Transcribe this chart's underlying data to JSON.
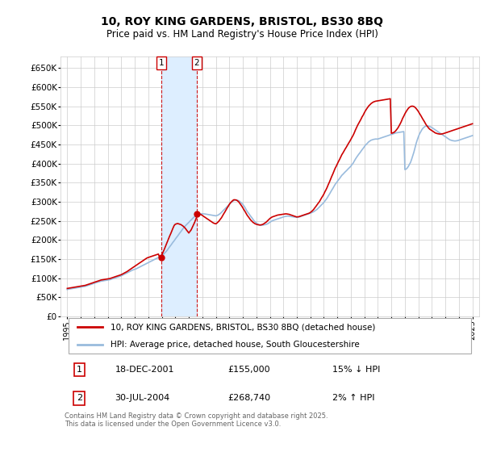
{
  "title": "10, ROY KING GARDENS, BRISTOL, BS30 8BQ",
  "subtitle": "Price paid vs. HM Land Registry's House Price Index (HPI)",
  "ylim": [
    0,
    680000
  ],
  "yticks": [
    0,
    50000,
    100000,
    150000,
    200000,
    250000,
    300000,
    350000,
    400000,
    450000,
    500000,
    550000,
    600000,
    650000
  ],
  "ytick_labels": [
    "£0",
    "£50K",
    "£100K",
    "£150K",
    "£200K",
    "£250K",
    "£300K",
    "£350K",
    "£400K",
    "£450K",
    "£500K",
    "£550K",
    "£600K",
    "£650K"
  ],
  "sale1_x": 2001.96,
  "sale1_y": 155000,
  "sale2_x": 2004.58,
  "sale2_y": 268740,
  "sale_labels": [
    "1",
    "2"
  ],
  "legend_house_label": "10, ROY KING GARDENS, BRISTOL, BS30 8BQ (detached house)",
  "legend_hpi_label": "HPI: Average price, detached house, South Gloucestershire",
  "table_rows": [
    [
      "1",
      "18-DEC-2001",
      "£155,000",
      "15% ↓ HPI"
    ],
    [
      "2",
      "30-JUL-2004",
      "£268,740",
      "2% ↑ HPI"
    ]
  ],
  "footer_text": "Contains HM Land Registry data © Crown copyright and database right 2025.\nThis data is licensed under the Open Government Licence v3.0.",
  "house_color": "#cc0000",
  "hpi_color": "#99bbdd",
  "sale_marker_color": "#cc0000",
  "shade_color": "#ddeeff",
  "grid_color": "#cccccc",
  "background_color": "#ffffff",
  "xlim_start": 1994.5,
  "xlim_end": 2025.5,
  "xticks": [
    1995,
    1996,
    1997,
    1998,
    1999,
    2000,
    2001,
    2002,
    2003,
    2004,
    2005,
    2006,
    2007,
    2008,
    2009,
    2010,
    2011,
    2012,
    2013,
    2014,
    2015,
    2016,
    2017,
    2018,
    2019,
    2020,
    2021,
    2022,
    2023,
    2024,
    2025
  ],
  "hpi_x": [
    1995.0,
    1995.08,
    1995.17,
    1995.25,
    1995.33,
    1995.42,
    1995.5,
    1995.58,
    1995.67,
    1995.75,
    1995.83,
    1995.92,
    1996.0,
    1996.08,
    1996.17,
    1996.25,
    1996.33,
    1996.42,
    1996.5,
    1996.58,
    1996.67,
    1996.75,
    1996.83,
    1996.92,
    1997.0,
    1997.08,
    1997.17,
    1997.25,
    1997.33,
    1997.42,
    1997.5,
    1997.58,
    1997.67,
    1997.75,
    1997.83,
    1997.92,
    1998.0,
    1998.08,
    1998.17,
    1998.25,
    1998.33,
    1998.42,
    1998.5,
    1998.58,
    1998.67,
    1998.75,
    1998.83,
    1998.92,
    1999.0,
    1999.08,
    1999.17,
    1999.25,
    1999.33,
    1999.42,
    1999.5,
    1999.58,
    1999.67,
    1999.75,
    1999.83,
    1999.92,
    2000.0,
    2000.08,
    2000.17,
    2000.25,
    2000.33,
    2000.42,
    2000.5,
    2000.58,
    2000.67,
    2000.75,
    2000.83,
    2000.92,
    2001.0,
    2001.08,
    2001.17,
    2001.25,
    2001.33,
    2001.42,
    2001.5,
    2001.58,
    2001.67,
    2001.75,
    2001.83,
    2001.92,
    2002.0,
    2002.08,
    2002.17,
    2002.25,
    2002.33,
    2002.42,
    2002.5,
    2002.58,
    2002.67,
    2002.75,
    2002.83,
    2002.92,
    2003.0,
    2003.08,
    2003.17,
    2003.25,
    2003.33,
    2003.42,
    2003.5,
    2003.58,
    2003.67,
    2003.75,
    2003.83,
    2003.92,
    2004.0,
    2004.08,
    2004.17,
    2004.25,
    2004.33,
    2004.42,
    2004.5,
    2004.58,
    2004.67,
    2004.75,
    2004.83,
    2004.92,
    2005.0,
    2005.08,
    2005.17,
    2005.25,
    2005.33,
    2005.42,
    2005.5,
    2005.58,
    2005.67,
    2005.75,
    2005.83,
    2005.92,
    2006.0,
    2006.08,
    2006.17,
    2006.25,
    2006.33,
    2006.42,
    2006.5,
    2006.58,
    2006.67,
    2006.75,
    2006.83,
    2006.92,
    2007.0,
    2007.08,
    2007.17,
    2007.25,
    2007.33,
    2007.42,
    2007.5,
    2007.58,
    2007.67,
    2007.75,
    2007.83,
    2007.92,
    2008.0,
    2008.08,
    2008.17,
    2008.25,
    2008.33,
    2008.42,
    2008.5,
    2008.58,
    2008.67,
    2008.75,
    2008.83,
    2008.92,
    2009.0,
    2009.08,
    2009.17,
    2009.25,
    2009.33,
    2009.42,
    2009.5,
    2009.58,
    2009.67,
    2009.75,
    2009.83,
    2009.92,
    2010.0,
    2010.08,
    2010.17,
    2010.25,
    2010.33,
    2010.42,
    2010.5,
    2010.58,
    2010.67,
    2010.75,
    2010.83,
    2010.92,
    2011.0,
    2011.08,
    2011.17,
    2011.25,
    2011.33,
    2011.42,
    2011.5,
    2011.58,
    2011.67,
    2011.75,
    2011.83,
    2011.92,
    2012.0,
    2012.08,
    2012.17,
    2012.25,
    2012.33,
    2012.42,
    2012.5,
    2012.58,
    2012.67,
    2012.75,
    2012.83,
    2012.92,
    2013.0,
    2013.08,
    2013.17,
    2013.25,
    2013.33,
    2013.42,
    2013.5,
    2013.58,
    2013.67,
    2013.75,
    2013.83,
    2013.92,
    2014.0,
    2014.08,
    2014.17,
    2014.25,
    2014.33,
    2014.42,
    2014.5,
    2014.58,
    2014.67,
    2014.75,
    2014.83,
    2014.92,
    2015.0,
    2015.08,
    2015.17,
    2015.25,
    2015.33,
    2015.42,
    2015.5,
    2015.58,
    2015.67,
    2015.75,
    2015.83,
    2015.92,
    2016.0,
    2016.08,
    2016.17,
    2016.25,
    2016.33,
    2016.42,
    2016.5,
    2016.58,
    2016.67,
    2016.75,
    2016.83,
    2016.92,
    2017.0,
    2017.08,
    2017.17,
    2017.25,
    2017.33,
    2017.42,
    2017.5,
    2017.58,
    2017.67,
    2017.75,
    2017.83,
    2017.92,
    2018.0,
    2018.08,
    2018.17,
    2018.25,
    2018.33,
    2018.42,
    2018.5,
    2018.58,
    2018.67,
    2018.75,
    2018.83,
    2018.92,
    2019.0,
    2019.08,
    2019.17,
    2019.25,
    2019.33,
    2019.42,
    2019.5,
    2019.58,
    2019.67,
    2019.75,
    2019.83,
    2019.92,
    2020.0,
    2020.08,
    2020.17,
    2020.25,
    2020.33,
    2020.42,
    2020.5,
    2020.58,
    2020.67,
    2020.75,
    2020.83,
    2020.92,
    2021.0,
    2021.08,
    2021.17,
    2021.25,
    2021.33,
    2021.42,
    2021.5,
    2021.58,
    2021.67,
    2021.75,
    2021.83,
    2021.92,
    2022.0,
    2022.08,
    2022.17,
    2022.25,
    2022.33,
    2022.42,
    2022.5,
    2022.58,
    2022.67,
    2022.75,
    2022.83,
    2022.92,
    2023.0,
    2023.08,
    2023.17,
    2023.25,
    2023.33,
    2023.42,
    2023.5,
    2023.58,
    2023.67,
    2023.75,
    2023.83,
    2023.92,
    2024.0,
    2024.08,
    2024.17,
    2024.25,
    2024.33,
    2024.42,
    2024.5,
    2024.58,
    2024.67,
    2024.75,
    2024.83,
    2024.92,
    2025.0
  ],
  "hpi_v": [
    70000,
    71000,
    71500,
    72000,
    72500,
    73000,
    73500,
    74000,
    74500,
    75000,
    75500,
    76000,
    76500,
    77000,
    77500,
    78000,
    78500,
    79500,
    80500,
    81500,
    82500,
    83500,
    84500,
    85500,
    86500,
    87500,
    88500,
    89500,
    90500,
    91500,
    92000,
    92500,
    93000,
    93500,
    94000,
    94500,
    95000,
    95500,
    96000,
    97000,
    98000,
    99000,
    100000,
    101000,
    102000,
    103000,
    104000,
    105000,
    106000,
    107500,
    109000,
    110500,
    112000,
    113500,
    115000,
    116500,
    118000,
    119500,
    121000,
    122000,
    123000,
    124000,
    125500,
    127000,
    128500,
    130000,
    131500,
    133000,
    134500,
    136000,
    137500,
    139000,
    140500,
    142000,
    143500,
    145000,
    146500,
    148000,
    149500,
    151000,
    152500,
    154000,
    155000,
    156000,
    158000,
    161000,
    164000,
    167000,
    170000,
    174000,
    178000,
    182000,
    186000,
    190000,
    194000,
    198000,
    202000,
    206000,
    210000,
    214000,
    218000,
    222000,
    226000,
    230000,
    234000,
    237000,
    240000,
    243000,
    246000,
    249000,
    252000,
    255000,
    258000,
    261000,
    263000,
    265000,
    267000,
    267500,
    268000,
    268200,
    268400,
    268200,
    268000,
    267500,
    267000,
    266500,
    266000,
    265500,
    265000,
    264500,
    264000,
    263500,
    263000,
    264000,
    265000,
    267000,
    269000,
    272000,
    275000,
    278000,
    281000,
    284000,
    287000,
    290000,
    293000,
    296000,
    299000,
    301000,
    303000,
    304000,
    304500,
    304000,
    303000,
    301500,
    299000,
    296000,
    293000,
    289000,
    284000,
    279000,
    274000,
    270000,
    266000,
    262000,
    258000,
    254000,
    250000,
    247000,
    244000,
    242000,
    240000,
    239000,
    238000,
    238500,
    239000,
    239500,
    240000,
    241000,
    242000,
    244000,
    246000,
    248000,
    250000,
    251000,
    252000,
    253000,
    254000,
    255000,
    256000,
    257000,
    258000,
    259000,
    260000,
    261000,
    261500,
    262000,
    262500,
    262000,
    261500,
    261000,
    260500,
    260000,
    259500,
    259000,
    259000,
    259500,
    260000,
    261000,
    262000,
    263000,
    264000,
    265000,
    266000,
    267000,
    268000,
    269000,
    270000,
    271000,
    272500,
    274000,
    276000,
    278000,
    280000,
    283000,
    286000,
    289000,
    292000,
    295000,
    298000,
    302000,
    306000,
    310000,
    315000,
    320000,
    325000,
    330000,
    335000,
    340000,
    345000,
    349000,
    353000,
    357000,
    361000,
    365000,
    369000,
    372000,
    375000,
    378000,
    381000,
    384000,
    387000,
    390000,
    393000,
    397000,
    401000,
    406000,
    411000,
    416000,
    420000,
    424000,
    428000,
    432000,
    436000,
    440000,
    444000,
    448000,
    451000,
    454000,
    457000,
    459000,
    461000,
    462000,
    463000,
    463500,
    464000,
    464000,
    464000,
    465000,
    466000,
    467000,
    468000,
    469000,
    470000,
    471000,
    472000,
    473000,
    474000,
    475000,
    476000,
    477000,
    478000,
    479000,
    480000,
    480500,
    481000,
    481500,
    482000,
    482500,
    483000,
    483500,
    384000,
    385000,
    388000,
    392000,
    397000,
    403000,
    411000,
    420000,
    430000,
    441000,
    452000,
    462000,
    470000,
    477000,
    483000,
    488000,
    492000,
    495000,
    497000,
    498000,
    498500,
    498000,
    497000,
    495500,
    494000,
    492000,
    490000,
    488000,
    486000,
    484000,
    482000,
    480000,
    478000,
    476000,
    474000,
    472000,
    470000,
    468000,
    466000,
    464000,
    462000,
    461000,
    460000,
    459500,
    459000,
    459000,
    459500,
    460000,
    461000,
    462000,
    463000,
    464000,
    465000,
    466000,
    467000,
    468000,
    469000,
    470000,
    471000,
    472000,
    473000
  ],
  "house_v": [
    73000,
    73500,
    74000,
    74500,
    75000,
    75500,
    76000,
    76500,
    77000,
    77500,
    78000,
    78500,
    79000,
    79500,
    80000,
    80500,
    81000,
    82000,
    83000,
    84000,
    85000,
    86000,
    87000,
    88000,
    89000,
    90000,
    91000,
    92000,
    93000,
    94000,
    95000,
    95500,
    96000,
    96500,
    97000,
    97500,
    98000,
    98500,
    99000,
    100000,
    101000,
    102000,
    103000,
    104000,
    105000,
    106000,
    107000,
    108000,
    109000,
    110500,
    112000,
    113500,
    115000,
    117000,
    119000,
    121000,
    123000,
    125000,
    127000,
    129000,
    131000,
    133000,
    135000,
    137000,
    139000,
    141000,
    143000,
    145000,
    147000,
    149000,
    151000,
    153000,
    154000,
    155000,
    156000,
    157000,
    158000,
    159000,
    160000,
    161000,
    162000,
    163000,
    155000,
    156000,
    160000,
    167000,
    174000,
    181000,
    188000,
    196000,
    203000,
    210000,
    217000,
    224000,
    231000,
    238000,
    241000,
    242000,
    243000,
    242000,
    241000,
    240000,
    238000,
    236000,
    233000,
    230000,
    226000,
    222000,
    218000,
    222000,
    226000,
    232000,
    238000,
    245000,
    252000,
    260000,
    268740,
    268000,
    267000,
    266000,
    264000,
    262000,
    260000,
    258000,
    256000,
    254000,
    252000,
    250000,
    248000,
    246000,
    244000,
    243000,
    242000,
    244000,
    247000,
    250000,
    254000,
    258000,
    263000,
    268000,
    273000,
    278000,
    283000,
    288000,
    293000,
    297000,
    300000,
    303000,
    305000,
    305000,
    304500,
    303000,
    300500,
    297000,
    293000,
    288500,
    284000,
    279000,
    274000,
    269000,
    264000,
    260000,
    256000,
    252000,
    249000,
    246000,
    244000,
    242000,
    241000,
    240000,
    239500,
    239000,
    239200,
    240000,
    241000,
    243000,
    245000,
    247000,
    250000,
    253000,
    256000,
    258000,
    260000,
    261000,
    262000,
    263000,
    264000,
    265000,
    265500,
    266000,
    266500,
    267000,
    267500,
    268000,
    268200,
    268000,
    267500,
    267000,
    266000,
    265000,
    264000,
    263000,
    262000,
    261000,
    260000,
    260500,
    261000,
    262000,
    263000,
    264000,
    265000,
    266000,
    267000,
    268000,
    269000,
    270000,
    272000,
    274000,
    277000,
    280000,
    284000,
    288000,
    292000,
    296000,
    300000,
    305000,
    310000,
    315000,
    320000,
    326000,
    332000,
    338000,
    345000,
    352000,
    359000,
    366000,
    373000,
    380000,
    387000,
    393000,
    399000,
    405000,
    411000,
    417000,
    423000,
    428000,
    433000,
    438000,
    443000,
    448000,
    453000,
    458000,
    463000,
    468000,
    474000,
    480000,
    487000,
    494000,
    500000,
    505000,
    511000,
    516000,
    522000,
    527000,
    533000,
    538000,
    543000,
    547000,
    551000,
    554000,
    557000,
    559000,
    561000,
    562000,
    563000,
    563500,
    564000,
    564500,
    565000,
    565500,
    566000,
    566500,
    567000,
    567500,
    568000,
    568500,
    569000,
    569500,
    479000,
    480000,
    481000,
    483000,
    486000,
    490000,
    494000,
    499000,
    505000,
    511000,
    518000,
    524000,
    530000,
    535000,
    540000,
    544000,
    547000,
    549000,
    550000,
    550000,
    549000,
    547000,
    544000,
    540000,
    536000,
    531000,
    526000,
    521000,
    516000,
    511000,
    506000,
    501000,
    497000,
    493000,
    490000,
    488000,
    486000,
    484000,
    482000,
    480000,
    479000,
    478000,
    477500,
    477000,
    477000,
    477500,
    478000,
    479000,
    480000,
    481000,
    482000,
    483000,
    484000,
    485000,
    486000,
    487000,
    488000,
    489000,
    490000,
    491000,
    492000,
    493000,
    494000,
    495000,
    496000,
    497000,
    498000,
    499000,
    500000,
    501000,
    502000,
    503000,
    504000
  ]
}
